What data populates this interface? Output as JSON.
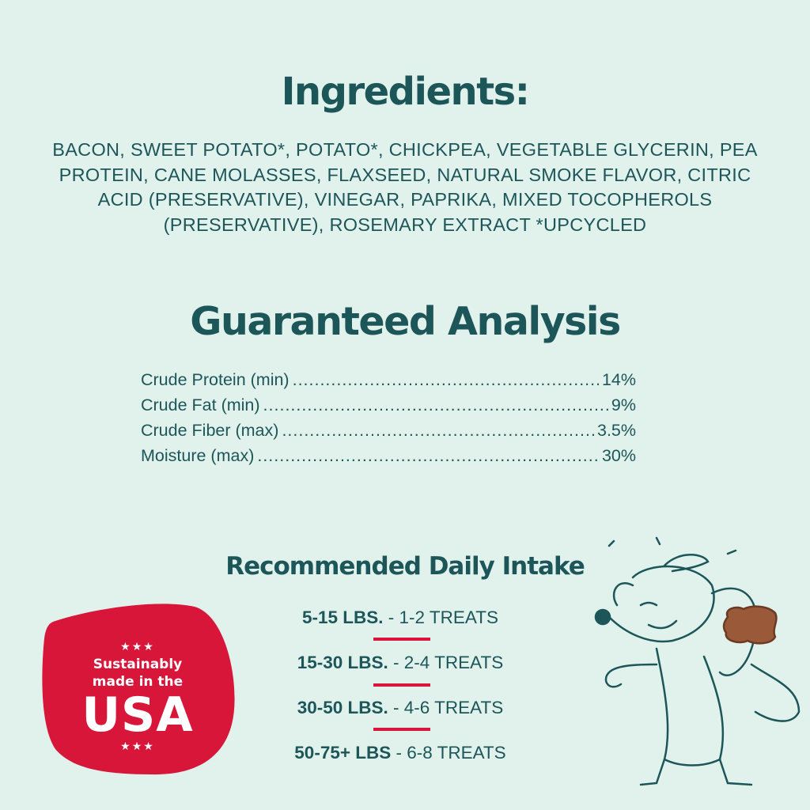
{
  "ingredients": {
    "title": "Ingredients:",
    "text": "BACON, SWEET POTATO*, POTATO*, CHICKPEA, VEGETABLE GLYCERIN, PEA PROTEIN, CANE MOLASSES, FLAXSEED, NATURAL SMOKE FLAVOR, CITRIC ACID (PRESERVATIVE), VINEGAR, PAPRIKA, MIXED TOCOPHEROLS (PRESERVATIVE), ROSEMARY EXTRACT *UPCYCLED"
  },
  "analysis": {
    "title": "Guaranteed Analysis",
    "rows": [
      {
        "label": "Crude Protein (min)",
        "value": "14%"
      },
      {
        "label": "Crude Fat (min)",
        "value": "9%"
      },
      {
        "label": "Crude Fiber (max)",
        "value": "3.5%"
      },
      {
        "label": "Moisture (max)",
        "value": "30%"
      }
    ]
  },
  "intake": {
    "title": "Recommended Daily Intake",
    "rows": [
      {
        "weight": "5-15 LBS.",
        "amount": " - 1-2 TREATS"
      },
      {
        "weight": "15-30 LBS.",
        "amount": " - 2-4 TREATS"
      },
      {
        "weight": "30-50 LBS.",
        "amount": " - 4-6 TREATS"
      },
      {
        "weight": "50-75+ LBS",
        "amount": " - 6-8 TREATS"
      }
    ]
  },
  "badge": {
    "stars": "★★★",
    "line1": "Sustainably",
    "line2": "made in the",
    "line3": "USA",
    "color": "#d8163a"
  },
  "colors": {
    "background": "#e1f1ec",
    "text": "#1d5659",
    "accent": "#d8163a"
  },
  "illustration": "dog-holding-treat-icon"
}
